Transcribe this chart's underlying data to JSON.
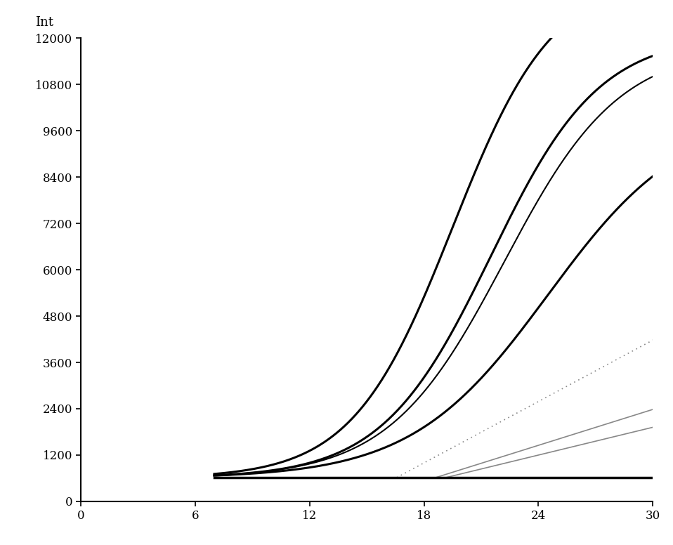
{
  "title": "",
  "xlabel": "",
  "ylabel": "Int",
  "xlim": [
    0,
    30
  ],
  "ylim": [
    0,
    12000
  ],
  "xticks": [
    0,
    6,
    12,
    18,
    24,
    30
  ],
  "yticks": [
    0,
    1200,
    2400,
    3600,
    4800,
    6000,
    7200,
    8400,
    9600,
    10800,
    12000
  ],
  "background_color": "#ffffff",
  "figsize": [
    9.58,
    7.76
  ],
  "dpi": 100,
  "curves": [
    {
      "type": "sigmoid",
      "color": "#000000",
      "linewidth": 2.2,
      "L": 13000,
      "k": 0.38,
      "x0": 19.5,
      "baseline": 600
    },
    {
      "type": "sigmoid",
      "color": "#000000",
      "linewidth": 2.2,
      "L": 11500,
      "k": 0.35,
      "x0": 21.5,
      "baseline": 600
    },
    {
      "type": "sigmoid",
      "color": "#000000",
      "linewidth": 1.5,
      "L": 11200,
      "k": 0.33,
      "x0": 22.2,
      "baseline": 600
    },
    {
      "type": "sigmoid",
      "color": "#000000",
      "linewidth": 2.2,
      "L": 9500,
      "k": 0.28,
      "x0": 24.5,
      "baseline": 600
    },
    {
      "type": "linear",
      "color": "#888888",
      "linewidth": 1.2,
      "slope": 155,
      "intercept_x": 18.5,
      "baseline": 600
    },
    {
      "type": "linear",
      "color": "#888888",
      "linewidth": 1.2,
      "slope": 120,
      "intercept_x": 19.0,
      "baseline": 600
    },
    {
      "type": "dotted",
      "color": "#888888",
      "linewidth": 1.2,
      "slope": 265,
      "intercept_x": 16.5,
      "baseline": 600
    },
    {
      "type": "flat",
      "color": "#000000",
      "linewidth": 2.5,
      "value": 620
    }
  ]
}
